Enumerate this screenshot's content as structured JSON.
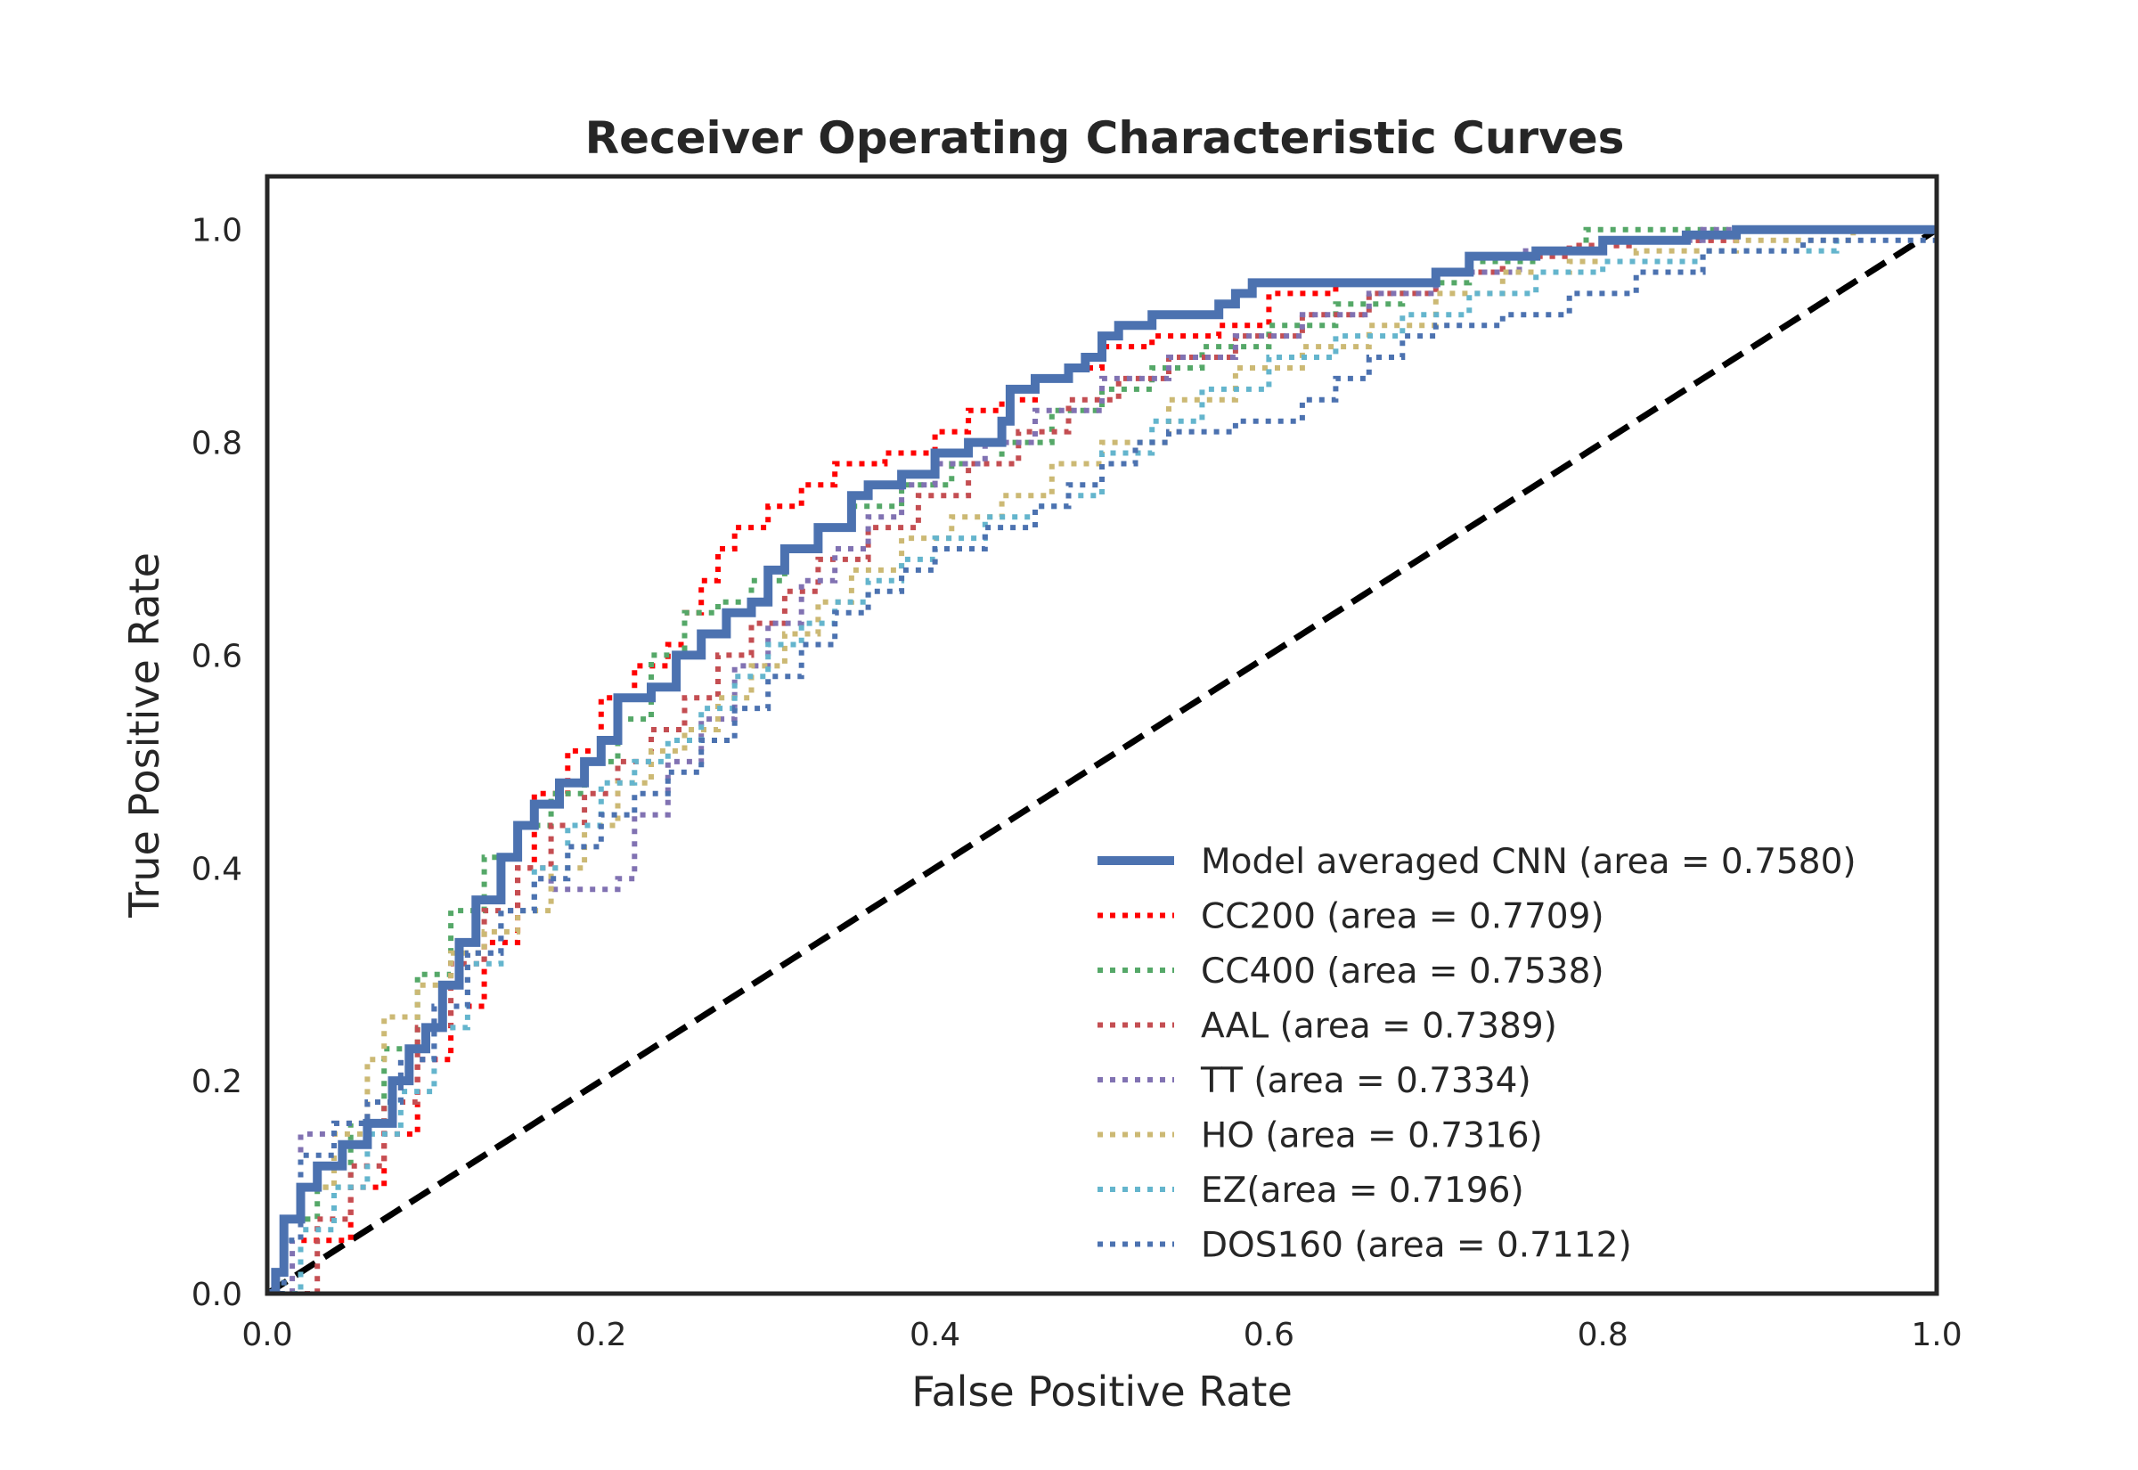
{
  "chart_data": {
    "type": "line",
    "title": "Receiver Operating Characteristic Curves",
    "xlabel": "False Positive Rate",
    "ylabel": "True Positive Rate",
    "xlim": [
      0.0,
      1.0
    ],
    "ylim": [
      0.0,
      1.05
    ],
    "x_ticks": [
      "0.0",
      "0.2",
      "0.4",
      "0.6",
      "0.8",
      "1.0"
    ],
    "y_ticks": [
      "0.0",
      "0.2",
      "0.4",
      "0.6",
      "0.8",
      "1.0"
    ],
    "grid": false,
    "legend_position": "lower-right",
    "diagonal": {
      "name": "chance",
      "x": [
        0,
        1
      ],
      "y": [
        0,
        1
      ],
      "color": "#000000",
      "style": "dashed"
    },
    "series": [
      {
        "name": "Model averaged CNN (area = 0.7580)",
        "color": "#4c72b0",
        "style": "solid",
        "x": [
          0.0,
          0.005,
          0.01,
          0.02,
          0.03,
          0.045,
          0.06,
          0.075,
          0.085,
          0.095,
          0.105,
          0.115,
          0.125,
          0.14,
          0.15,
          0.16,
          0.175,
          0.19,
          0.2,
          0.21,
          0.23,
          0.245,
          0.26,
          0.275,
          0.29,
          0.3,
          0.31,
          0.33,
          0.35,
          0.36,
          0.38,
          0.4,
          0.42,
          0.44,
          0.445,
          0.46,
          0.48,
          0.49,
          0.5,
          0.51,
          0.53,
          0.55,
          0.57,
          0.58,
          0.59,
          0.6,
          0.62,
          0.7,
          0.72,
          0.76,
          0.8,
          0.85,
          0.88,
          1.0
        ],
        "y": [
          0.0,
          0.02,
          0.07,
          0.1,
          0.12,
          0.14,
          0.16,
          0.2,
          0.23,
          0.25,
          0.29,
          0.33,
          0.37,
          0.41,
          0.44,
          0.46,
          0.48,
          0.5,
          0.52,
          0.56,
          0.57,
          0.6,
          0.62,
          0.64,
          0.65,
          0.68,
          0.7,
          0.72,
          0.75,
          0.76,
          0.77,
          0.79,
          0.8,
          0.82,
          0.85,
          0.86,
          0.87,
          0.88,
          0.9,
          0.91,
          0.92,
          0.92,
          0.93,
          0.94,
          0.95,
          0.95,
          0.95,
          0.96,
          0.975,
          0.98,
          0.99,
          0.995,
          1.0,
          1.0
        ]
      },
      {
        "name": "CC200 (area = 0.7709)",
        "color": "#ff0000",
        "style": "dotted",
        "x": [
          0.0,
          0.02,
          0.05,
          0.07,
          0.09,
          0.11,
          0.13,
          0.15,
          0.16,
          0.18,
          0.2,
          0.22,
          0.24,
          0.25,
          0.26,
          0.27,
          0.28,
          0.3,
          0.32,
          0.34,
          0.37,
          0.4,
          0.42,
          0.44,
          0.46,
          0.48,
          0.5,
          0.53,
          0.57,
          0.6,
          0.64,
          0.7,
          0.74,
          0.78,
          0.82,
          0.88,
          1.0
        ],
        "y": [
          0.0,
          0.05,
          0.1,
          0.15,
          0.22,
          0.27,
          0.33,
          0.4,
          0.47,
          0.51,
          0.56,
          0.59,
          0.61,
          0.64,
          0.67,
          0.7,
          0.72,
          0.74,
          0.76,
          0.78,
          0.79,
          0.81,
          0.83,
          0.84,
          0.86,
          0.87,
          0.89,
          0.9,
          0.91,
          0.94,
          0.95,
          0.96,
          0.975,
          0.985,
          0.99,
          1.0,
          1.0
        ]
      },
      {
        "name": "CC400 (area = 0.7538)",
        "color": "#55a868",
        "style": "dotted",
        "x": [
          0.0,
          0.01,
          0.03,
          0.05,
          0.07,
          0.09,
          0.11,
          0.13,
          0.15,
          0.17,
          0.19,
          0.21,
          0.23,
          0.25,
          0.27,
          0.29,
          0.31,
          0.33,
          0.35,
          0.38,
          0.41,
          0.44,
          0.47,
          0.5,
          0.53,
          0.56,
          0.6,
          0.64,
          0.68,
          0.72,
          0.76,
          0.79,
          0.85,
          1.0
        ],
        "y": [
          0.0,
          0.07,
          0.1,
          0.16,
          0.23,
          0.3,
          0.36,
          0.41,
          0.44,
          0.47,
          0.5,
          0.54,
          0.6,
          0.64,
          0.65,
          0.67,
          0.7,
          0.72,
          0.74,
          0.76,
          0.78,
          0.8,
          0.83,
          0.85,
          0.87,
          0.89,
          0.91,
          0.93,
          0.95,
          0.97,
          0.98,
          1.0,
          1.0,
          1.0
        ]
      },
      {
        "name": "AAL (area = 0.7389)",
        "color": "#c44e52",
        "style": "dotted",
        "x": [
          0.0,
          0.03,
          0.05,
          0.07,
          0.09,
          0.11,
          0.13,
          0.15,
          0.17,
          0.19,
          0.21,
          0.23,
          0.25,
          0.27,
          0.29,
          0.31,
          0.33,
          0.36,
          0.39,
          0.42,
          0.45,
          0.48,
          0.51,
          0.54,
          0.58,
          0.62,
          0.66,
          0.7,
          0.74,
          0.78,
          0.82,
          0.88,
          1.0
        ],
        "y": [
          0.0,
          0.07,
          0.12,
          0.18,
          0.25,
          0.31,
          0.36,
          0.4,
          0.44,
          0.47,
          0.5,
          0.53,
          0.56,
          0.6,
          0.63,
          0.66,
          0.69,
          0.72,
          0.75,
          0.78,
          0.81,
          0.84,
          0.86,
          0.88,
          0.9,
          0.92,
          0.94,
          0.96,
          0.975,
          0.985,
          0.99,
          1.0,
          1.0
        ]
      },
      {
        "name": "TT (area = 0.7334)",
        "color": "#8172b2",
        "style": "dotted",
        "x": [
          0.0,
          0.015,
          0.02,
          0.04,
          0.06,
          0.08,
          0.1,
          0.12,
          0.14,
          0.16,
          0.17,
          0.19,
          0.21,
          0.22,
          0.24,
          0.26,
          0.28,
          0.3,
          0.32,
          0.34,
          0.36,
          0.38,
          0.4,
          0.43,
          0.46,
          0.5,
          0.54,
          0.58,
          0.62,
          0.66,
          0.7,
          0.75,
          0.8,
          0.86,
          1.0
        ],
        "y": [
          0.0,
          0.05,
          0.15,
          0.16,
          0.18,
          0.22,
          0.27,
          0.32,
          0.36,
          0.39,
          0.38,
          0.38,
          0.39,
          0.45,
          0.5,
          0.54,
          0.59,
          0.63,
          0.67,
          0.7,
          0.73,
          0.76,
          0.78,
          0.8,
          0.83,
          0.86,
          0.88,
          0.9,
          0.92,
          0.94,
          0.96,
          0.98,
          0.99,
          1.0,
          1.0
        ]
      },
      {
        "name": "HO (area = 0.7316)",
        "color": "#ccb974",
        "style": "dotted",
        "x": [
          0.0,
          0.02,
          0.04,
          0.06,
          0.07,
          0.09,
          0.11,
          0.13,
          0.15,
          0.17,
          0.19,
          0.21,
          0.23,
          0.25,
          0.27,
          0.29,
          0.31,
          0.33,
          0.35,
          0.38,
          0.41,
          0.44,
          0.47,
          0.5,
          0.54,
          0.58,
          0.62,
          0.66,
          0.7,
          0.74,
          0.78,
          0.82,
          0.88,
          0.95,
          1.0
        ],
        "y": [
          0.0,
          0.1,
          0.15,
          0.22,
          0.26,
          0.29,
          0.32,
          0.34,
          0.36,
          0.4,
          0.44,
          0.48,
          0.51,
          0.53,
          0.56,
          0.59,
          0.62,
          0.65,
          0.68,
          0.71,
          0.73,
          0.75,
          0.78,
          0.8,
          0.84,
          0.87,
          0.89,
          0.91,
          0.94,
          0.96,
          0.97,
          0.98,
          0.99,
          1.0,
          1.0
        ]
      },
      {
        "name": "EZ(area = 0.7196)",
        "color": "#64b5cd",
        "style": "dotted",
        "x": [
          0.0,
          0.02,
          0.04,
          0.06,
          0.08,
          0.1,
          0.12,
          0.14,
          0.16,
          0.18,
          0.2,
          0.22,
          0.24,
          0.26,
          0.28,
          0.3,
          0.32,
          0.34,
          0.36,
          0.38,
          0.4,
          0.43,
          0.46,
          0.48,
          0.5,
          0.53,
          0.56,
          0.6,
          0.64,
          0.68,
          0.72,
          0.76,
          0.8,
          0.86,
          0.94,
          1.0
        ],
        "y": [
          0.0,
          0.06,
          0.1,
          0.15,
          0.19,
          0.25,
          0.31,
          0.36,
          0.4,
          0.44,
          0.48,
          0.5,
          0.52,
          0.55,
          0.58,
          0.61,
          0.63,
          0.65,
          0.67,
          0.69,
          0.71,
          0.73,
          0.74,
          0.75,
          0.79,
          0.82,
          0.85,
          0.88,
          0.9,
          0.92,
          0.94,
          0.96,
          0.97,
          0.98,
          1.0,
          1.0
        ]
      },
      {
        "name": "DOS160 (area = 0.7112)",
        "color": "#4c72b0",
        "style": "dotted",
        "x": [
          0.0,
          0.01,
          0.02,
          0.04,
          0.06,
          0.08,
          0.1,
          0.12,
          0.14,
          0.16,
          0.18,
          0.2,
          0.22,
          0.24,
          0.26,
          0.28,
          0.3,
          0.32,
          0.34,
          0.36,
          0.38,
          0.4,
          0.43,
          0.46,
          0.48,
          0.5,
          0.52,
          0.54,
          0.58,
          0.62,
          0.64,
          0.66,
          0.68,
          0.7,
          0.74,
          0.78,
          0.82,
          0.86,
          0.92,
          1.0
        ],
        "y": [
          0.0,
          0.05,
          0.13,
          0.16,
          0.18,
          0.22,
          0.27,
          0.32,
          0.36,
          0.39,
          0.42,
          0.45,
          0.47,
          0.49,
          0.52,
          0.55,
          0.58,
          0.61,
          0.64,
          0.66,
          0.68,
          0.7,
          0.72,
          0.74,
          0.76,
          0.78,
          0.8,
          0.81,
          0.82,
          0.84,
          0.86,
          0.88,
          0.9,
          0.91,
          0.92,
          0.94,
          0.96,
          0.98,
          0.99,
          1.0
        ]
      }
    ]
  }
}
